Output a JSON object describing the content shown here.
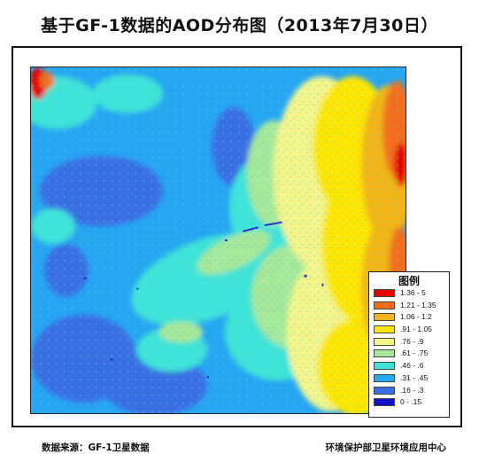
{
  "title": "基于GF-1数据的AOD分布图（2013年7月30日）",
  "legend": {
    "title": "图例",
    "items": [
      {
        "label": "1.36 - 5",
        "color": "#e60000"
      },
      {
        "label": "1.21 - 1.35",
        "color": "#f46e1a"
      },
      {
        "label": "1.06 - 1.2",
        "color": "#f4b418"
      },
      {
        "label": ".91 - 1.05",
        "color": "#ffe600"
      },
      {
        "label": ".76 - .9",
        "color": "#f5f58c"
      },
      {
        "label": ".61 - .75",
        "color": "#a8e89a"
      },
      {
        "label": ".46 - .6",
        "color": "#3fe3d7"
      },
      {
        "label": ".31 - .45",
        "color": "#27a6f2"
      },
      {
        "label": ".16 - .3",
        "color": "#3b6fe4"
      },
      {
        "label": "0 - .15",
        "color": "#1111c8"
      }
    ]
  },
  "footer": {
    "source": "数据来源：GF-1卫星数据",
    "agency": "环境保护部卫星环境应用中心"
  }
}
